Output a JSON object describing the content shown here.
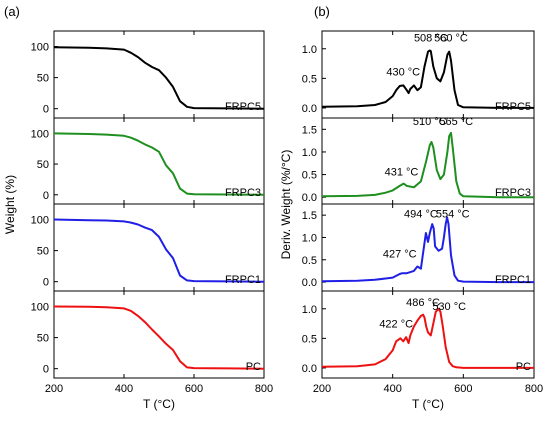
{
  "chart_data": [
    {
      "type": "line",
      "panel_label": "(a)",
      "xlabel": "T (°C)",
      "ylabel": "Weight (%)",
      "xlim": [
        200,
        800
      ],
      "xticks": [
        200,
        400,
        600,
        800
      ],
      "ylim": [
        -15,
        125
      ],
      "yticks": [
        0,
        50,
        100
      ],
      "grid": false,
      "subplots": [
        {
          "name": "FRPC5",
          "color": "#000000",
          "x": [
            200,
            300,
            350,
            400,
            420,
            440,
            460,
            480,
            500,
            520,
            540,
            560,
            580,
            600,
            700,
            800
          ],
          "y": [
            99,
            98,
            97,
            95,
            90,
            83,
            74,
            67,
            62,
            50,
            35,
            12,
            3,
            1,
            0.5,
            0
          ]
        },
        {
          "name": "FRPC3",
          "color": "#1f8f1f",
          "x": [
            200,
            300,
            350,
            400,
            420,
            440,
            460,
            480,
            500,
            520,
            540,
            560,
            580,
            600,
            700,
            800
          ],
          "y": [
            100,
            99,
            98,
            96,
            93,
            88,
            82,
            77,
            70,
            48,
            35,
            10,
            2,
            1,
            0.5,
            0
          ]
        },
        {
          "name": "FRPC1",
          "color": "#1f1fe6",
          "x": [
            200,
            300,
            350,
            400,
            420,
            440,
            460,
            480,
            500,
            520,
            540,
            560,
            580,
            600,
            700,
            800
          ],
          "y": [
            100,
            99,
            98.5,
            97,
            95,
            92,
            87,
            83,
            72,
            52,
            38,
            10,
            2,
            1,
            0.5,
            0
          ]
        },
        {
          "name": "PC",
          "color": "#ee1111",
          "x": [
            200,
            300,
            350,
            400,
            420,
            440,
            460,
            480,
            500,
            520,
            540,
            560,
            580,
            600,
            700,
            800
          ],
          "y": [
            100,
            99.5,
            99,
            97,
            93,
            85,
            75,
            63,
            52,
            40,
            30,
            12,
            2,
            1,
            0.5,
            0
          ]
        }
      ]
    },
    {
      "type": "line",
      "panel_label": "(b)",
      "xlabel": "T (°C)",
      "ylabel": "Deriv. Weight (%/°C)",
      "xlim": [
        200,
        800
      ],
      "xticks": [
        200,
        400,
        600,
        800
      ],
      "grid": false,
      "subplots": [
        {
          "name": "FRPC5",
          "color": "#000000",
          "ylim": [
            -0.17,
            1.3
          ],
          "yticks": [
            "0.0",
            "0.5",
            "1.0"
          ],
          "x": [
            200,
            300,
            350,
            380,
            400,
            410,
            420,
            430,
            440,
            445,
            450,
            460,
            470,
            480,
            490,
            500,
            505,
            508,
            515,
            525,
            535,
            545,
            555,
            560,
            565,
            575,
            585,
            600,
            700,
            800
          ],
          "y": [
            0.02,
            0.03,
            0.05,
            0.1,
            0.2,
            0.3,
            0.37,
            0.38,
            0.3,
            0.25,
            0.32,
            0.38,
            0.3,
            0.35,
            0.7,
            0.95,
            0.97,
            0.96,
            0.7,
            0.5,
            0.45,
            0.6,
            0.9,
            0.95,
            0.8,
            0.3,
            0.05,
            0.01,
            0,
            0
          ],
          "annotations": [
            {
              "text": "430 °C",
              "x": 430,
              "y": 0.55
            },
            {
              "text": "508 °C",
              "x": 508,
              "y": 1.12
            },
            {
              "text": "560 °C",
              "x": 565,
              "y": 1.12
            }
          ]
        },
        {
          "name": "FRPC3",
          "color": "#1f8f1f",
          "ylim": [
            -0.15,
            1.75
          ],
          "yticks": [
            "0.0",
            "0.5",
            "1.0",
            "1.5"
          ],
          "x": [
            200,
            300,
            350,
            380,
            400,
            420,
            431,
            440,
            460,
            480,
            495,
            505,
            510,
            515,
            525,
            535,
            545,
            555,
            560,
            565,
            570,
            580,
            590,
            600,
            700,
            800
          ],
          "y": [
            0.02,
            0.03,
            0.05,
            0.1,
            0.15,
            0.25,
            0.3,
            0.25,
            0.22,
            0.35,
            0.8,
            1.15,
            1.22,
            1.1,
            0.6,
            0.4,
            0.5,
            1.0,
            1.35,
            1.42,
            1.1,
            0.35,
            0.08,
            0.02,
            0,
            0
          ],
          "annotations": [
            {
              "text": "431 °C",
              "x": 425,
              "y": 0.48
            },
            {
              "text": "510 °C",
              "x": 505,
              "y": 1.6
            },
            {
              "text": "565 °C",
              "x": 580,
              "y": 1.6
            }
          ]
        },
        {
          "name": "FRPC1",
          "color": "#1f1fe6",
          "ylim": [
            -0.2,
            1.75
          ],
          "yticks": [
            "0.0",
            "0.5",
            "1.0",
            "1.5"
          ],
          "x": [
            200,
            300,
            350,
            380,
            400,
            420,
            427,
            440,
            460,
            470,
            480,
            487,
            494,
            500,
            505,
            512,
            516,
            520,
            530,
            540,
            545,
            550,
            554,
            558,
            565,
            575,
            585,
            600,
            700,
            800
          ],
          "y": [
            0.02,
            0.03,
            0.05,
            0.08,
            0.1,
            0.18,
            0.2,
            0.2,
            0.25,
            0.35,
            0.3,
            0.7,
            1.1,
            0.9,
            1.1,
            1.3,
            1.2,
            0.8,
            0.7,
            0.75,
            1.0,
            1.3,
            1.45,
            1.3,
            0.6,
            0.15,
            0.03,
            0.01,
            0,
            0
          ],
          "annotations": [
            {
              "text": "427 °C",
              "x": 420,
              "y": 0.55
            },
            {
              "text": "494 °C",
              "x": 480,
              "y": 1.45
            },
            {
              "text": "554 °C",
              "x": 570,
              "y": 1.45
            }
          ]
        },
        {
          "name": "PC",
          "color": "#ee1111",
          "ylim": [
            -0.17,
            1.3
          ],
          "yticks": [
            "0.0",
            "0.5",
            "1.0"
          ],
          "x": [
            200,
            300,
            350,
            380,
            400,
            410,
            422,
            430,
            438,
            445,
            450,
            460,
            470,
            480,
            486,
            490,
            495,
            500,
            508,
            515,
            522,
            530,
            535,
            542,
            550,
            560,
            570,
            580,
            600,
            700,
            800
          ],
          "y": [
            0.02,
            0.03,
            0.06,
            0.15,
            0.3,
            0.45,
            0.5,
            0.45,
            0.52,
            0.42,
            0.55,
            0.7,
            0.8,
            0.88,
            0.9,
            0.85,
            0.7,
            0.6,
            0.55,
            0.75,
            0.95,
            1.0,
            0.95,
            0.7,
            0.35,
            0.1,
            0.03,
            0.01,
            0,
            0,
            0
          ],
          "annotations": [
            {
              "text": "422 °C",
              "x": 410,
              "y": 0.68
            },
            {
              "text": "486 °C",
              "x": 486,
              "y": 1.05
            },
            {
              "text": "530 °C",
              "x": 560,
              "y": 0.98
            }
          ]
        }
      ]
    }
  ]
}
